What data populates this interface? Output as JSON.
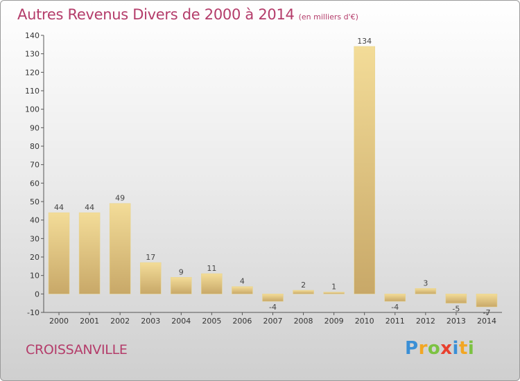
{
  "title": "Autres Revenus Divers de 2000 à 2014",
  "subtitle": "(en milliers d'€)",
  "city": "CROISSANVILLE",
  "logo": {
    "letters": [
      "P",
      "r",
      "o",
      "x",
      "i",
      "t",
      "i"
    ],
    "colors": [
      "#3a8fd6",
      "#f2a623",
      "#7cc242",
      "#e8402e",
      "#3a8fd6",
      "#f2a623",
      "#7cc242"
    ]
  },
  "colors": {
    "bar_light": "#f3dc98",
    "bar_dark": "#c8a868",
    "title": "#b43c6a"
  },
  "chart_data": {
    "type": "bar",
    "categories": [
      "2000",
      "2001",
      "2002",
      "2003",
      "2004",
      "2005",
      "2006",
      "2007",
      "2008",
      "2009",
      "2010",
      "2011",
      "2012",
      "2013",
      "2014"
    ],
    "values": [
      44,
      44,
      49,
      17,
      9,
      11,
      4,
      -4,
      2,
      1,
      134,
      -4,
      3,
      -5,
      -7
    ],
    "title": "Autres Revenus Divers de 2000 à 2014",
    "subtitle": "(en milliers d'€)",
    "ylim": [
      -10,
      140
    ],
    "yticks": [
      -10,
      0,
      10,
      20,
      30,
      40,
      50,
      60,
      70,
      80,
      90,
      100,
      110,
      120,
      130,
      140
    ],
    "grid": false,
    "legend": "none"
  }
}
